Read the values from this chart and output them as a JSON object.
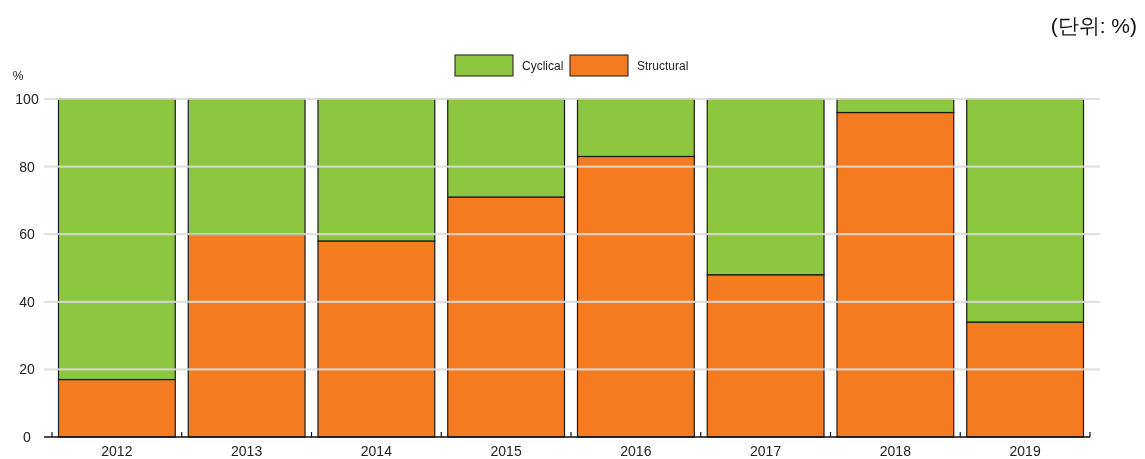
{
  "chart_data": {
    "type": "bar",
    "stacked": true,
    "categories": [
      "2012",
      "2013",
      "2014",
      "2015",
      "2016",
      "2017",
      "2018",
      "2019"
    ],
    "series": [
      {
        "name": "Structural",
        "color": "#f47b20",
        "values": [
          17,
          60,
          58,
          71,
          83,
          48,
          96,
          34
        ]
      },
      {
        "name": "Cyclical",
        "color": "#8dc63f",
        "values": [
          83,
          40,
          42,
          29,
          17,
          52,
          4,
          66
        ]
      }
    ],
    "ylabel": "%",
    "ylim": [
      0,
      100
    ],
    "yticks": [
      0,
      20,
      40,
      60,
      80,
      100
    ],
    "grid": "y",
    "legend": "top",
    "annotations": [
      "(단위: %)"
    ]
  }
}
